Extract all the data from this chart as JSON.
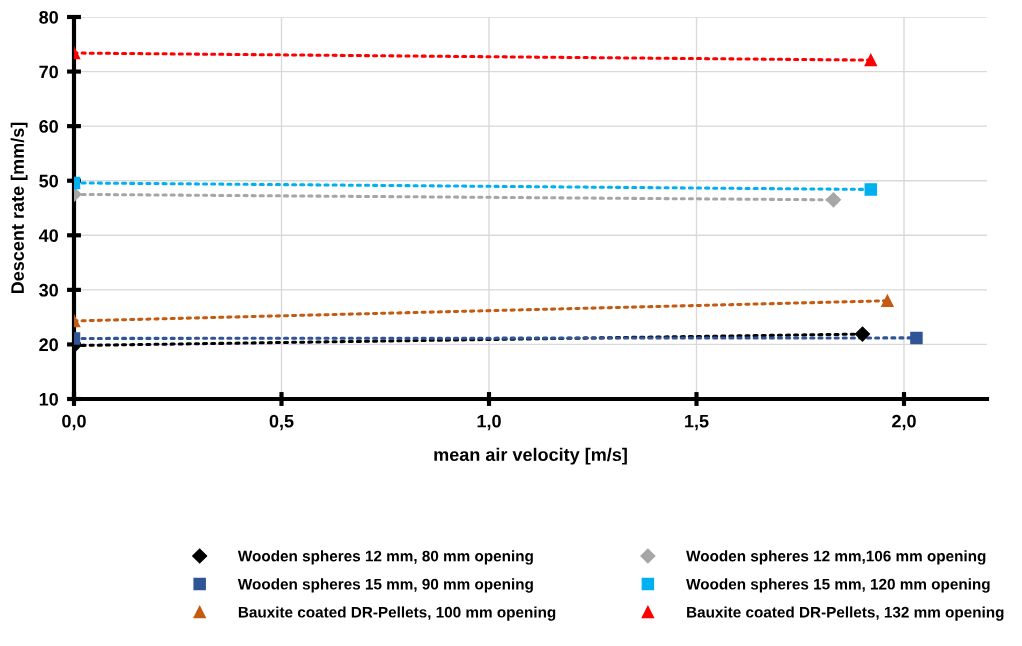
{
  "chart_data": {
    "type": "line",
    "xlabel": "mean air velocity [m/s]",
    "ylabel": "Descent rate [mm/s]",
    "xlim": [
      0,
      2.2
    ],
    "ylim": [
      10,
      80
    ],
    "xticks": [
      {
        "value": 0,
        "label": "0,0"
      },
      {
        "value": 0.5,
        "label": "0,5"
      },
      {
        "value": 1.0,
        "label": "1,0"
      },
      {
        "value": 1.5,
        "label": "1,5"
      },
      {
        "value": 2.0,
        "label": "2,0"
      }
    ],
    "yticks": [
      10,
      20,
      30,
      40,
      50,
      60,
      70,
      80
    ],
    "grid": true,
    "legend": "bottom",
    "line_style": "dotted",
    "series": [
      {
        "name": "Wooden spheres 12 mm, 80 mm opening",
        "color": "#000000",
        "marker": "diamond",
        "x": [
          0,
          1.9
        ],
        "values": [
          19.8,
          21.9
        ]
      },
      {
        "name": "Wooden spheres 12 mm,106 mm opening",
        "color": "#a6a6a6",
        "marker": "diamond",
        "x": [
          0,
          1.83
        ],
        "values": [
          47.5,
          46.5
        ]
      },
      {
        "name": "Wooden spheres 15 mm, 90 mm opening",
        "color": "#2f5597",
        "marker": "square",
        "x": [
          0,
          2.03
        ],
        "values": [
          21.1,
          21.2
        ]
      },
      {
        "name": "Wooden spheres 15 mm, 120 mm opening",
        "color": "#00b0f0",
        "marker": "square",
        "x": [
          0,
          1.92
        ],
        "values": [
          49.6,
          48.4
        ]
      },
      {
        "name": "Bauxite coated DR-Pellets, 100 mm opening",
        "color": "#c55a11",
        "marker": "triangle",
        "x": [
          0,
          1.96
        ],
        "values": [
          24.3,
          28.0
        ]
      },
      {
        "name": "Bauxite coated DR-Pellets, 132 mm opening",
        "color": "#ff0000",
        "marker": "triangle",
        "x": [
          0,
          1.92
        ],
        "values": [
          73.4,
          72.1
        ]
      }
    ]
  }
}
